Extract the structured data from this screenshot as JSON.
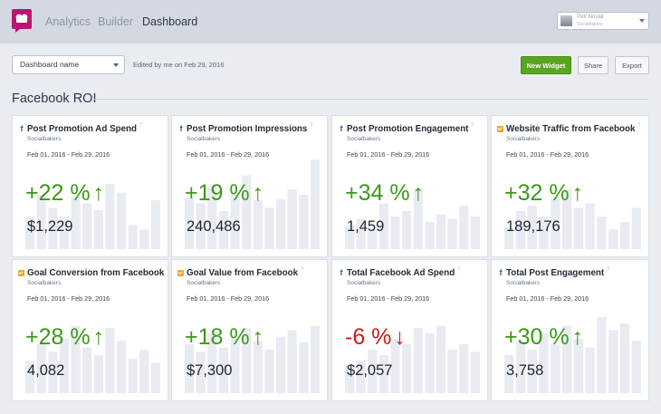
{
  "nav": {
    "items": [
      "Analytics",
      "Builder",
      "Dashboard"
    ],
    "active": "Dashboard"
  },
  "user": {
    "name": "Petr Novák",
    "org": "Socialbakers"
  },
  "toolbar": {
    "dashboard_select": "Dashboard name",
    "edited": "Edited by me on Feb 29, 2016",
    "new_widget": "New Widget",
    "share": "Share",
    "export": "Export"
  },
  "section": {
    "title": "Facebook ROI"
  },
  "colors": {
    "positive": "#3b9a17",
    "negative": "#d21a1a",
    "accent_button": "#5aa51f",
    "facebook_icon": "#3b5998",
    "analytics_icon": "#f4a52a"
  },
  "cards": [
    {
      "icon": "facebook-icon",
      "title": "Post Promotion Ad Spend",
      "source": "Socialbakers",
      "range": "Feb 01, 2016 - Feb 29, 2016",
      "change": "+22 %",
      "arrow": "↑",
      "direction": "up",
      "value": "$1,229",
      "bars": [
        0.3,
        0.5,
        0.38,
        0.3,
        0.48,
        0.42,
        0.36,
        0.6,
        0.52,
        0.22,
        0.18,
        0.45
      ]
    },
    {
      "icon": "facebook-icon",
      "title": "Post Promotion Impressions",
      "source": "Socialbakers",
      "range": "Feb 01, 2016 - Feb 29, 2016",
      "change": "+19 %",
      "arrow": "↑",
      "direction": "up",
      "value": "240,486",
      "bars": [
        0.48,
        0.42,
        0.58,
        0.35,
        0.52,
        0.68,
        0.45,
        0.38,
        0.46,
        0.55,
        0.5,
        0.82
      ]
    },
    {
      "icon": "facebook-icon",
      "title": "Post Promotion Engagement",
      "source": "Socialbakers",
      "range": "Feb 01, 2016 - Feb 29, 2016",
      "change": "+34 %",
      "arrow": "↑",
      "direction": "up",
      "value": "1,459",
      "bars": [
        0.22,
        0.28,
        0.18,
        0.42,
        0.3,
        0.35,
        0.55,
        0.25,
        0.32,
        0.28,
        0.4,
        0.3
      ]
    },
    {
      "icon": "google-analytics-icon",
      "title": "Website Traffic from Facebook",
      "source": "Socialbakers",
      "range": "Feb 01, 2016 - Feb 29, 2016",
      "change": "+32 %",
      "arrow": "↑",
      "direction": "up",
      "value": "189,176",
      "bars": [
        0.2,
        0.35,
        0.4,
        0.3,
        0.48,
        0.55,
        0.38,
        0.42,
        0.3,
        0.18,
        0.25,
        0.38
      ]
    },
    {
      "icon": "google-analytics-icon",
      "title": "Goal Conversion from Facebook",
      "source": "Socialbakers",
      "range": "Feb 01, 2016 - Feb 29, 2016",
      "change": "+28 %",
      "arrow": "↑",
      "direction": "up",
      "value": "4,082",
      "bars": [
        0.3,
        0.45,
        0.38,
        0.5,
        0.62,
        0.42,
        0.35,
        0.6,
        0.48,
        0.32,
        0.4,
        0.28
      ]
    },
    {
      "icon": "google-analytics-icon",
      "title": "Goal Value from Facebook",
      "source": "Socialbakers",
      "range": "Feb 01, 2016 - Feb 29, 2016",
      "change": "+18 %",
      "arrow": "↑",
      "direction": "up",
      "value": "$7,300",
      "bars": [
        0.45,
        0.38,
        0.55,
        0.42,
        0.5,
        0.6,
        0.48,
        0.4,
        0.52,
        0.58,
        0.47,
        0.62
      ]
    },
    {
      "icon": "facebook-icon",
      "title": "Total Facebook Ad Spend",
      "source": "Socialbakers",
      "range": "Feb 01, 2016 - Feb 29, 2016",
      "change": "-6 %",
      "arrow": "↓",
      "direction": "down",
      "value": "$2,057",
      "bars": [
        0.25,
        0.3,
        0.4,
        0.35,
        0.5,
        0.45,
        0.6,
        0.55,
        0.62,
        0.4,
        0.45,
        0.38
      ]
    },
    {
      "icon": "facebook-icon",
      "title": "Total Post Engagement",
      "source": "Socialbakers",
      "range": "Feb 01, 2016 - Feb 29, 2016",
      "change": "+30 %",
      "arrow": "↑",
      "direction": "up",
      "value": "3,758",
      "bars": [
        0.35,
        0.48,
        0.4,
        0.55,
        0.45,
        0.62,
        0.5,
        0.42,
        0.7,
        0.58,
        0.64,
        0.48
      ]
    }
  ]
}
